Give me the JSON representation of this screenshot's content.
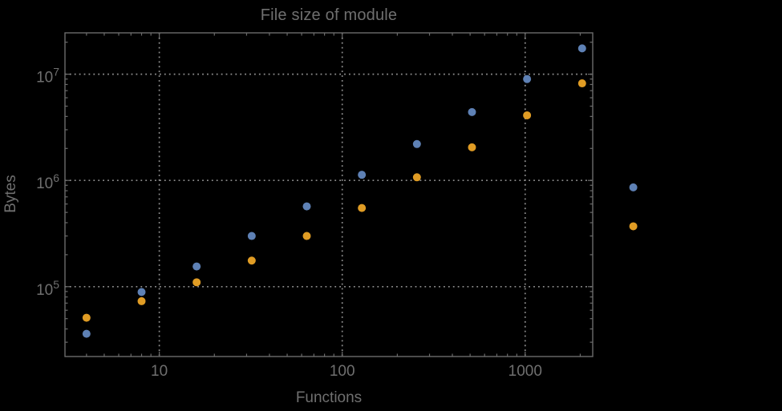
{
  "colors": {
    "background": "#000000",
    "frame": "#6b6b6b",
    "grid": "#8f8f8f",
    "text": "#6f6f6f",
    "series_blue": "#5e81b5",
    "series_orange": "#e09c24"
  },
  "chart_data": {
    "type": "scatter",
    "title": "File size of module",
    "xlabel": "Functions",
    "ylabel": "Bytes",
    "x_scale": "log",
    "y_scale": "log",
    "xlim": [
      3.05,
      2340
    ],
    "ylim": [
      22000,
      24500000
    ],
    "grid": "dotted",
    "legend": "none",
    "marker_diameter": 10,
    "x_major_ticks": [
      10,
      100,
      1000
    ],
    "x_tick_labels": [
      "10",
      "100",
      "1000"
    ],
    "y_major_ticks": [
      100000,
      1000000,
      10000000
    ],
    "y_tick_labels": [
      {
        "mantissa": "10",
        "exponent": "5"
      },
      {
        "mantissa": "10",
        "exponent": "6"
      },
      {
        "mantissa": "10",
        "exponent": "7"
      }
    ],
    "series": [
      {
        "name": "blue-series",
        "color": "#5e81b5",
        "points": [
          [
            4,
            36000
          ],
          [
            8,
            89000
          ],
          [
            16,
            155000
          ],
          [
            32,
            300000
          ],
          [
            64,
            570000
          ],
          [
            128,
            1130000
          ],
          [
            256,
            2200000
          ],
          [
            512,
            4400000
          ],
          [
            1024,
            9000000
          ],
          [
            2048,
            17500000
          ],
          [
            3900,
            860000
          ]
        ]
      },
      {
        "name": "orange-series",
        "color": "#e09c24",
        "points": [
          [
            4,
            51000
          ],
          [
            8,
            73000
          ],
          [
            16,
            110000
          ],
          [
            32,
            176000
          ],
          [
            64,
            300000
          ],
          [
            128,
            550000
          ],
          [
            256,
            1070000
          ],
          [
            512,
            2050000
          ],
          [
            1024,
            4100000
          ],
          [
            2048,
            8200000
          ],
          [
            3900,
            370000
          ]
        ]
      }
    ]
  }
}
